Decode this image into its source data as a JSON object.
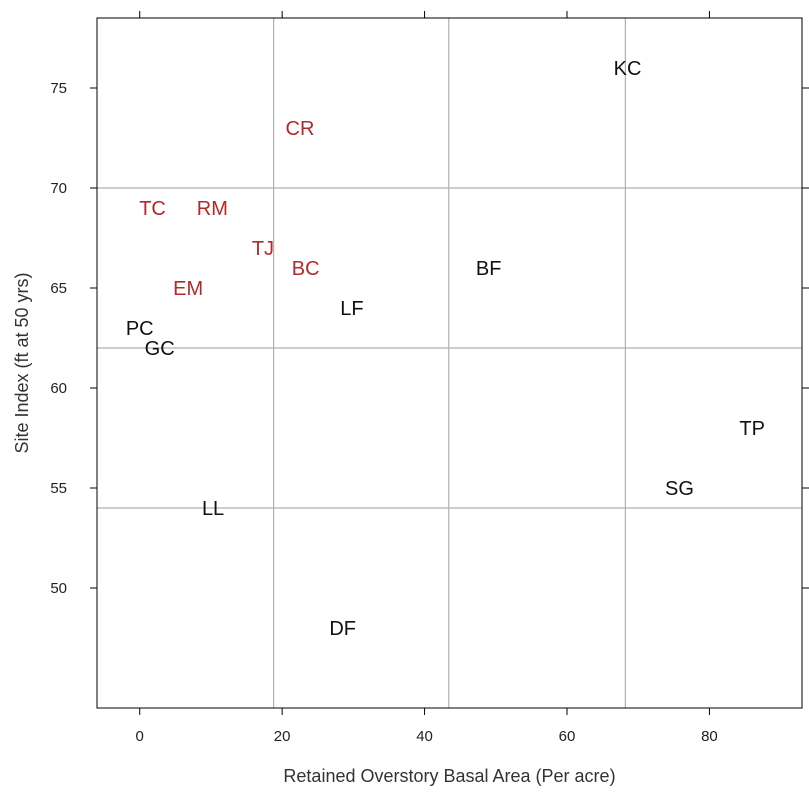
{
  "chart_data": {
    "type": "scatter",
    "title": "",
    "xlabel": "Retained Overstory Basal Area (Per acre)",
    "ylabel": "Site Index  (ft at 50 yrs)",
    "xlim": [
      -6,
      93
    ],
    "ylim": [
      44,
      78.5
    ],
    "xticks": [
      0,
      20,
      40,
      60,
      80
    ],
    "yticks": [
      50,
      55,
      60,
      65,
      70,
      75
    ],
    "grid": false,
    "reference_lines": {
      "x": [
        18.8,
        43.4,
        68.2
      ],
      "y": [
        54,
        62,
        70
      ]
    },
    "colors": {
      "red": "#b5282a",
      "black": "#111111",
      "refline": "#b0b0b0",
      "frame": "#000000"
    },
    "points": [
      {
        "label": "KC",
        "x": 68.5,
        "y": 76,
        "color": "black"
      },
      {
        "label": "CR",
        "x": 22.5,
        "y": 73,
        "color": "red"
      },
      {
        "label": "TC",
        "x": 1.8,
        "y": 69,
        "color": "red"
      },
      {
        "label": "RM",
        "x": 10.2,
        "y": 69,
        "color": "red"
      },
      {
        "label": "TJ",
        "x": 17.3,
        "y": 67,
        "color": "red"
      },
      {
        "label": "BC",
        "x": 23.3,
        "y": 66,
        "color": "red"
      },
      {
        "label": "BF",
        "x": 49,
        "y": 66,
        "color": "black"
      },
      {
        "label": "EM",
        "x": 6.8,
        "y": 65,
        "color": "red"
      },
      {
        "label": "LF",
        "x": 29.8,
        "y": 64,
        "color": "black"
      },
      {
        "label": "PC",
        "x": 0,
        "y": 63,
        "color": "black"
      },
      {
        "label": "GC",
        "x": 2.8,
        "y": 62,
        "color": "black"
      },
      {
        "label": "TP",
        "x": 86,
        "y": 58,
        "color": "black"
      },
      {
        "label": "SG",
        "x": 75.8,
        "y": 55,
        "color": "black"
      },
      {
        "label": "LL",
        "x": 10.3,
        "y": 54,
        "color": "black"
      },
      {
        "label": "DF",
        "x": 28.5,
        "y": 48,
        "color": "black"
      }
    ]
  }
}
